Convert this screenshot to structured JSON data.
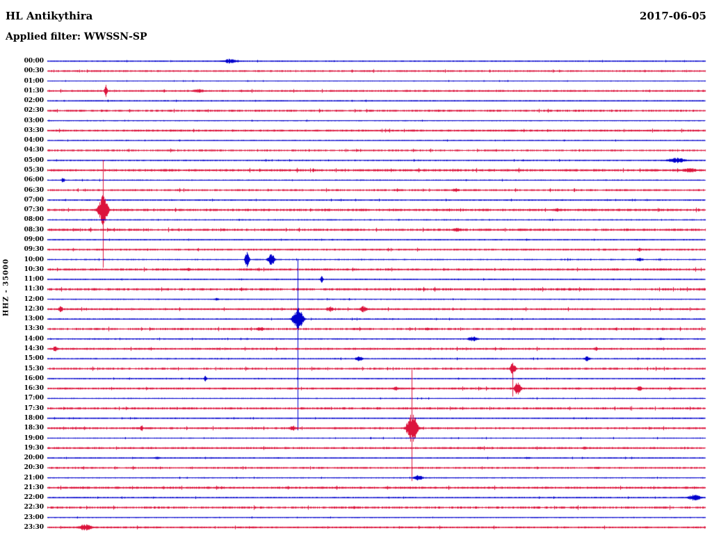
{
  "header": {
    "title": "HL Antikythira",
    "date": "2017-06-05",
    "filter": "Applied filter: WWSSN-SP"
  },
  "chart_data": {
    "type": "line",
    "subtype": "helicorder-seismogram",
    "title": "HL Antikythira",
    "date": "2017-06-05",
    "applied_filter": "WWSSN-SP",
    "ylabel": "HHZ - 35000",
    "minutes_per_row": 30,
    "time_start": "00:00",
    "time_end": "24:00",
    "grid": false,
    "legend": false,
    "palette": {
      "b": "#0000cd",
      "r": "#dc143c"
    },
    "amplitude_units": "pixels",
    "rows": [
      {
        "t": "00:00",
        "c": "b",
        "n": 0.8,
        "e": [
          {
            "m": 8.3,
            "a": 3.5,
            "w": 7
          }
        ]
      },
      {
        "t": "00:30",
        "c": "r",
        "n": 1.2,
        "e": []
      },
      {
        "t": "01:00",
        "c": "b",
        "n": 0.7,
        "e": []
      },
      {
        "t": "01:30",
        "c": "r",
        "n": 1.3,
        "e": [
          {
            "m": 2.66,
            "a": 10,
            "w": 1.6
          },
          {
            "m": 6.9,
            "a": 3,
            "w": 6
          }
        ]
      },
      {
        "t": "02:00",
        "c": "b",
        "n": 0.8,
        "e": []
      },
      {
        "t": "02:30",
        "c": "r",
        "n": 1.4,
        "e": []
      },
      {
        "t": "03:00",
        "c": "b",
        "n": 0.7,
        "e": []
      },
      {
        "t": "03:30",
        "c": "r",
        "n": 1.4,
        "e": []
      },
      {
        "t": "04:00",
        "c": "b",
        "n": 0.7,
        "e": []
      },
      {
        "t": "04:30",
        "c": "r",
        "n": 1.3,
        "e": []
      },
      {
        "t": "05:00",
        "c": "b",
        "n": 0.9,
        "e": [
          {
            "m": 28.7,
            "a": 4,
            "w": 10
          }
        ]
      },
      {
        "t": "05:30",
        "c": "r",
        "n": 1.6,
        "e": [
          {
            "m": 29.3,
            "a": 3.5,
            "w": 8
          }
        ]
      },
      {
        "t": "06:00",
        "c": "b",
        "n": 0.8,
        "e": [
          {
            "m": 0.7,
            "a": 4.5,
            "w": 1.6
          }
        ]
      },
      {
        "t": "06:30",
        "c": "r",
        "n": 1.3,
        "e": [
          {
            "m": 18.6,
            "a": 3,
            "w": 4
          }
        ]
      },
      {
        "t": "07:00",
        "c": "b",
        "n": 0.9,
        "e": []
      },
      {
        "t": "07:30",
        "c": "r",
        "n": 1.6,
        "e": [
          {
            "m": 2.54,
            "a": 23,
            "w": 4.5,
            "vu": 72,
            "vd": 83
          },
          {
            "m": 23.2,
            "a": 2.5,
            "w": 5
          }
        ]
      },
      {
        "t": "08:00",
        "c": "b",
        "n": 0.9,
        "e": []
      },
      {
        "t": "08:30",
        "c": "r",
        "n": 1.6,
        "e": [
          {
            "m": 18.7,
            "a": 3,
            "w": 5
          }
        ]
      },
      {
        "t": "09:00",
        "c": "b",
        "n": 0.8,
        "e": []
      },
      {
        "t": "09:30",
        "c": "r",
        "n": 1.3,
        "e": [
          {
            "m": 27.0,
            "a": 2.5,
            "w": 3
          }
        ]
      },
      {
        "t": "10:00",
        "c": "b",
        "n": 0.9,
        "e": [
          {
            "m": 9.1,
            "a": 14,
            "w": 2
          },
          {
            "m": 10.2,
            "a": 9,
            "w": 3.5
          },
          {
            "m": 27.0,
            "a": 2.5,
            "w": 4
          }
        ]
      },
      {
        "t": "10:30",
        "c": "r",
        "n": 1.5,
        "e": [
          {
            "m": 6.4,
            "a": 2.5,
            "w": 3
          }
        ]
      },
      {
        "t": "11:00",
        "c": "b",
        "n": 0.8,
        "e": [
          {
            "m": 12.5,
            "a": 5.5,
            "w": 1.6
          }
        ]
      },
      {
        "t": "11:30",
        "c": "r",
        "n": 1.6,
        "e": [
          {
            "m": 23.8,
            "a": 2,
            "w": 3
          }
        ]
      },
      {
        "t": "12:00",
        "c": "b",
        "n": 0.8,
        "e": [
          {
            "m": 7.7,
            "a": 1.8,
            "w": 3
          }
        ]
      },
      {
        "t": "12:30",
        "c": "r",
        "n": 1.4,
        "e": [
          {
            "m": 0.6,
            "a": 4.5,
            "w": 2.5
          },
          {
            "m": 12.9,
            "a": 4,
            "w": 3.5
          },
          {
            "m": 14.4,
            "a": 4.5,
            "w": 4
          }
        ]
      },
      {
        "t": "13:00",
        "c": "b",
        "n": 0.9,
        "e": [
          {
            "m": 11.42,
            "a": 17,
            "w": 5,
            "vu": 86,
            "vd": 160
          }
        ]
      },
      {
        "t": "13:30",
        "c": "r",
        "n": 1.5,
        "e": [
          {
            "m": 9.7,
            "a": 3.5,
            "w": 4
          },
          {
            "m": 17.3,
            "a": 2.5,
            "w": 2.5
          }
        ]
      },
      {
        "t": "14:00",
        "c": "b",
        "n": 0.9,
        "e": [
          {
            "m": 19.4,
            "a": 4,
            "w": 5
          },
          {
            "m": 28.0,
            "a": 2,
            "w": 3
          }
        ]
      },
      {
        "t": "14:30",
        "c": "r",
        "n": 1.4,
        "e": [
          {
            "m": 0.35,
            "a": 5,
            "w": 2.5
          },
          {
            "m": 25.0,
            "a": 3,
            "w": 2.5
          }
        ]
      },
      {
        "t": "15:00",
        "c": "b",
        "n": 0.9,
        "e": [
          {
            "m": 14.2,
            "a": 4.5,
            "w": 3.5
          },
          {
            "m": 24.6,
            "a": 3.5,
            "w": 3.5
          }
        ]
      },
      {
        "t": "15:30",
        "c": "r",
        "n": 1.4,
        "e": [
          {
            "m": 21.22,
            "a": 9,
            "w": 3,
            "vu": 8,
            "vd": 40
          }
        ]
      },
      {
        "t": "16:00",
        "c": "b",
        "n": 0.8,
        "e": [
          {
            "m": 7.2,
            "a": 4.5,
            "w": 1.6
          }
        ]
      },
      {
        "t": "16:30",
        "c": "r",
        "n": 1.4,
        "e": [
          {
            "m": 15.9,
            "a": 3,
            "w": 3.5
          },
          {
            "m": 21.44,
            "a": 10,
            "w": 3.5
          },
          {
            "m": 27.0,
            "a": 4,
            "w": 2.5
          }
        ]
      },
      {
        "t": "17:00",
        "c": "b",
        "n": 0.8,
        "e": []
      },
      {
        "t": "17:30",
        "c": "r",
        "n": 1.5,
        "e": []
      },
      {
        "t": "18:00",
        "c": "b",
        "n": 0.8,
        "e": []
      },
      {
        "t": "18:30",
        "c": "r",
        "n": 1.4,
        "e": [
          {
            "m": 4.3,
            "a": 5,
            "w": 1.6
          },
          {
            "m": 11.19,
            "a": 4,
            "w": 3.5
          },
          {
            "m": 16.62,
            "a": 22,
            "w": 5,
            "vu": 84,
            "vd": 76
          }
        ]
      },
      {
        "t": "19:00",
        "c": "b",
        "n": 0.8,
        "e": []
      },
      {
        "t": "19:30",
        "c": "r",
        "n": 1.4,
        "e": [
          {
            "m": 19.7,
            "a": 2,
            "w": 3
          },
          {
            "m": 24.5,
            "a": 2.5,
            "w": 2.5
          }
        ]
      },
      {
        "t": "20:00",
        "c": "b",
        "n": 0.8,
        "e": [
          {
            "m": 5.0,
            "a": 2,
            "w": 4
          },
          {
            "m": 21.9,
            "a": 1.8,
            "w": 3
          }
        ]
      },
      {
        "t": "20:30",
        "c": "r",
        "n": 1.3,
        "e": [
          {
            "m": 25.1,
            "a": 2,
            "w": 3
          }
        ]
      },
      {
        "t": "21:00",
        "c": "b",
        "n": 0.8,
        "e": [
          {
            "m": 16.9,
            "a": 4,
            "w": 5
          }
        ]
      },
      {
        "t": "21:30",
        "c": "r",
        "n": 1.5,
        "e": []
      },
      {
        "t": "22:00",
        "c": "b",
        "n": 0.9,
        "e": [
          {
            "m": 29.5,
            "a": 4.5,
            "w": 7
          }
        ]
      },
      {
        "t": "22:30",
        "c": "r",
        "n": 1.5,
        "e": [
          {
            "m": 14.0,
            "a": 2,
            "w": 3
          }
        ]
      },
      {
        "t": "23:00",
        "c": "b",
        "n": 0.7,
        "e": []
      },
      {
        "t": "23:30",
        "c": "r",
        "n": 1.3,
        "e": [
          {
            "m": 1.74,
            "a": 5,
            "w": 7
          }
        ]
      }
    ]
  }
}
